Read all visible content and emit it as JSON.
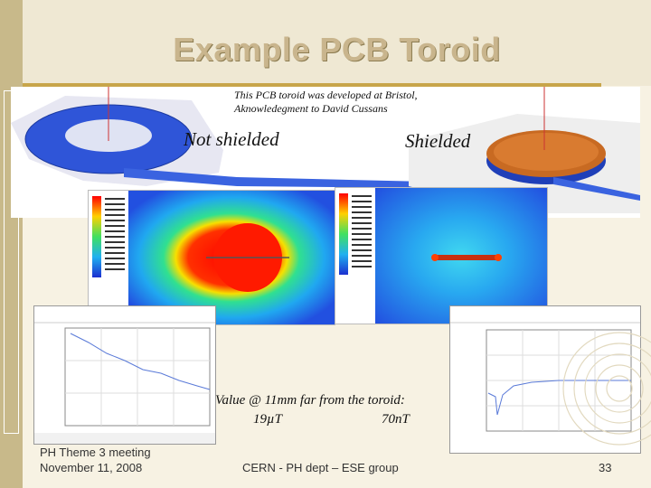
{
  "slide": {
    "title": "Example PCB Toroid",
    "credit_line1": "This PCB toroid was developed at Bristol,",
    "credit_line2": "Aknowledegment to David Cussans",
    "label_unshielded": "Not shielded",
    "label_shielded": "Shielded",
    "value_note": "Value @ 11mm far from the toroid:",
    "value_unshielded": "19µT",
    "value_shielded": "70nT",
    "footer_meeting": "PH Theme 3 meeting",
    "footer_date": "November 11, 2008",
    "footer_group": "CERN - PH dept – ESE group",
    "page_number": "33"
  },
  "colors": {
    "background": "#f7f2e3",
    "title_band": "#efe8d3",
    "title_text": "#c9b58d",
    "accent_rule": "#c8a54a",
    "left_bar": "#c8b98a"
  },
  "icons": [
    "swirl-decoration-icon"
  ]
}
